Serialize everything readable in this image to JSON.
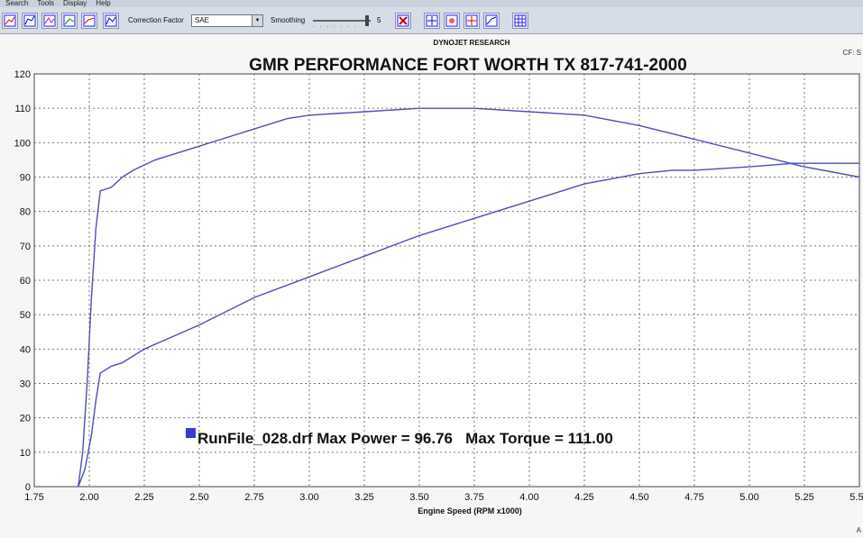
{
  "menu": [
    "Search",
    "Tools",
    "Display",
    "Help"
  ],
  "toolbar": {
    "correction_label": "Correction Factor",
    "correction_value": "SAE",
    "smoothing_label": "Smoothing",
    "smoothing_value": "5"
  },
  "side_note": "CF: S",
  "corner_note": "A",
  "colors": {
    "line": "#4d4dbf",
    "legend_box": "#3a3ad6",
    "grid": "#777777"
  },
  "chart_data": {
    "type": "line",
    "header": "DYNOJET RESEARCH",
    "title": "GMR PERFORMANCE FORT WORTH TX 817-741-2000",
    "xlabel": "Engine Speed (RPM x1000)",
    "ylabel": "",
    "xlim": [
      1.75,
      5.5
    ],
    "ylim": [
      0,
      120
    ],
    "xticks": [
      "1.75",
      "2.00",
      "2.25",
      "2.50",
      "2.75",
      "3.00",
      "3.25",
      "3.50",
      "3.75",
      "4.00",
      "4.25",
      "4.50",
      "4.75",
      "5.00",
      "5.25",
      "5.50"
    ],
    "yticks": [
      "0",
      "10",
      "20",
      "30",
      "40",
      "50",
      "60",
      "70",
      "80",
      "90",
      "100",
      "110",
      "120"
    ],
    "grid": true,
    "legend_text": "RunFile_028.drf Max Power = 96.76   Max Torque = 111.00",
    "series": [
      {
        "values": [
          [
            1.95,
            0
          ],
          [
            1.97,
            10
          ],
          [
            1.99,
            30
          ],
          [
            2.01,
            55
          ],
          [
            2.03,
            75
          ],
          [
            2.05,
            86
          ],
          [
            2.1,
            87
          ],
          [
            2.15,
            90
          ],
          [
            2.2,
            92
          ],
          [
            2.3,
            95
          ],
          [
            2.4,
            97
          ],
          [
            2.5,
            99
          ],
          [
            2.6,
            101
          ],
          [
            2.75,
            104
          ],
          [
            2.9,
            107
          ],
          [
            3.0,
            108
          ],
          [
            3.25,
            109
          ],
          [
            3.5,
            110
          ],
          [
            3.75,
            110
          ],
          [
            4.0,
            109
          ],
          [
            4.25,
            108
          ],
          [
            4.5,
            105
          ],
          [
            4.75,
            101
          ],
          [
            5.0,
            97
          ],
          [
            5.25,
            93
          ],
          [
            5.5,
            90
          ]
        ]
      },
      {
        "values": [
          [
            1.95,
            0
          ],
          [
            1.98,
            5
          ],
          [
            2.01,
            15
          ],
          [
            2.03,
            25
          ],
          [
            2.05,
            33
          ],
          [
            2.1,
            35
          ],
          [
            2.15,
            36
          ],
          [
            2.25,
            40
          ],
          [
            2.5,
            47
          ],
          [
            2.75,
            55
          ],
          [
            3.0,
            61
          ],
          [
            3.25,
            67
          ],
          [
            3.5,
            73
          ],
          [
            3.75,
            78
          ],
          [
            4.0,
            83
          ],
          [
            4.25,
            88
          ],
          [
            4.5,
            91
          ],
          [
            4.65,
            92
          ],
          [
            4.75,
            92
          ],
          [
            5.0,
            93
          ],
          [
            5.2,
            94
          ],
          [
            5.3,
            94
          ],
          [
            5.5,
            94
          ]
        ]
      }
    ]
  }
}
